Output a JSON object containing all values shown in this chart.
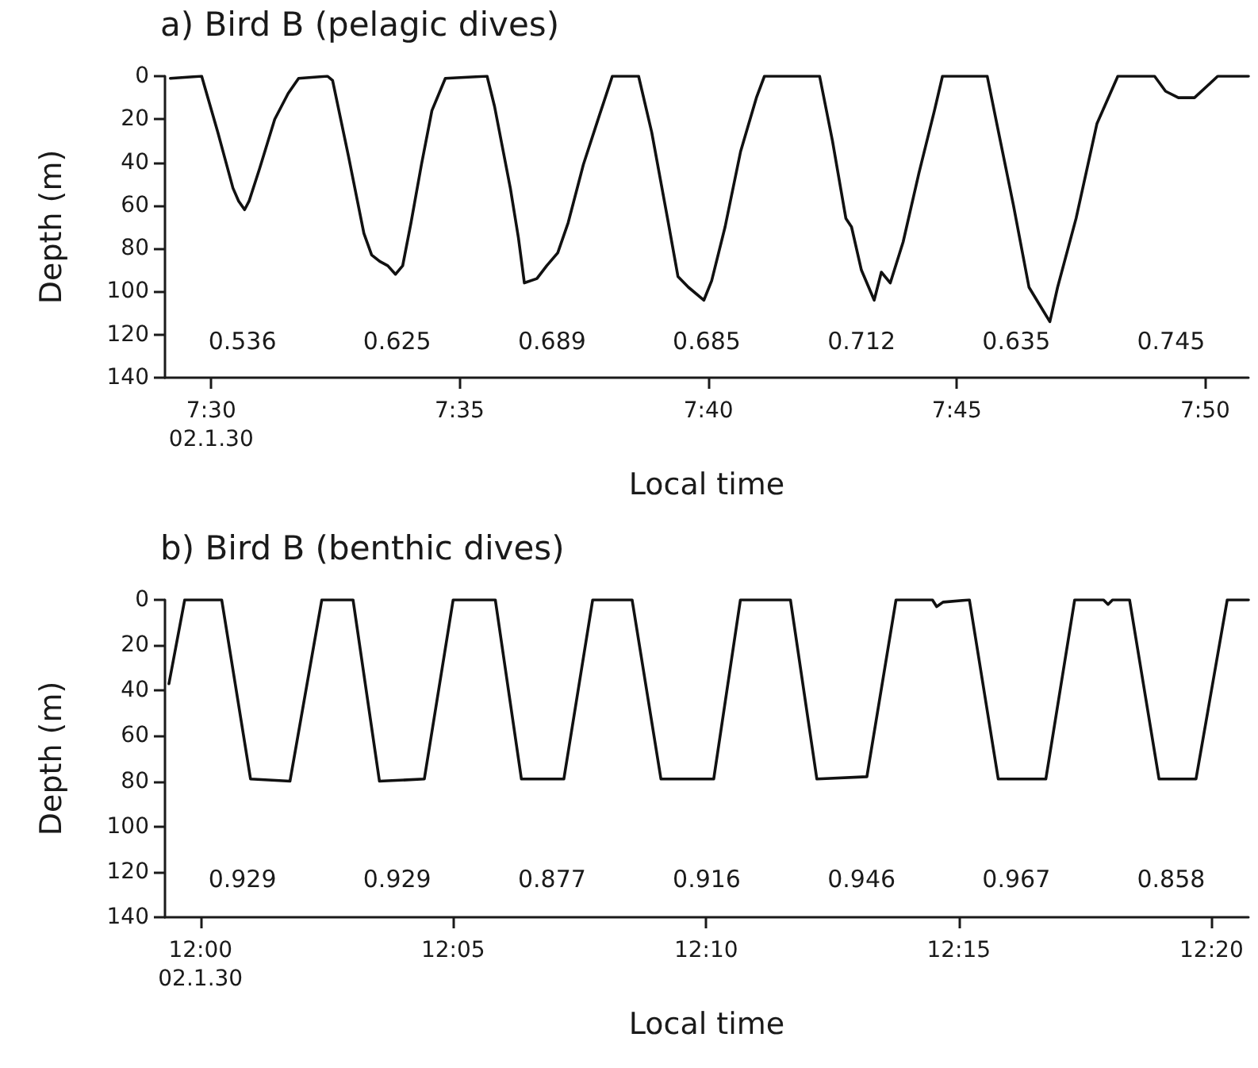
{
  "chart_data": [
    {
      "type": "line",
      "title": "a) Bird B (pelagic dives)",
      "xlabel": "Local time",
      "ylabel": "Depth (m)",
      "grid": false,
      "marker": "none",
      "line_style": "solid",
      "xlim": [
        7.4845,
        7.8478
      ],
      "ylim": [
        140,
        0
      ],
      "xticks": [
        {
          "value": 7.5,
          "label": "7:30\n02.1.30"
        },
        {
          "value": 7.5833,
          "label": "7:35"
        },
        {
          "value": 7.6667,
          "label": "7:40"
        },
        {
          "value": 7.75,
          "label": "7:45"
        },
        {
          "value": 7.8333,
          "label": "7:50"
        }
      ],
      "yticks": [
        0,
        20,
        40,
        60,
        80,
        100,
        120,
        140
      ],
      "x": [
        7.4863,
        7.4968,
        7.5022,
        7.5073,
        7.5092,
        7.5112,
        7.5127,
        7.5162,
        7.5213,
        7.5258,
        7.5293,
        7.539,
        7.5407,
        7.546,
        7.5512,
        7.5538,
        7.5565,
        7.5592,
        7.5618,
        7.5642,
        7.567,
        7.5705,
        7.574,
        7.5785,
        7.5925,
        7.595,
        7.6003,
        7.603,
        7.605,
        7.6092,
        7.6125,
        7.6162,
        7.6197,
        7.6248,
        7.6302,
        7.6345,
        7.6433,
        7.6477,
        7.653,
        7.6565,
        7.66,
        7.6652,
        7.6678,
        7.6723,
        7.6775,
        7.6828,
        7.6855,
        7.704,
        7.7083,
        7.7128,
        7.7147,
        7.718,
        7.7223,
        7.7247,
        7.7277,
        7.732,
        7.7373,
        7.7425,
        7.7452,
        7.7602,
        7.7637,
        7.769,
        7.7742,
        7.7777,
        7.7812,
        7.7838,
        7.79,
        7.797,
        7.804,
        7.8163,
        7.82,
        7.8243,
        7.8297,
        7.8375,
        7.8478
      ],
      "series": [
        {
          "color": "#111111",
          "values": [
            1,
            0,
            26,
            52,
            58,
            62,
            58,
            43,
            20,
            8,
            1,
            0,
            2,
            37,
            73,
            83,
            86,
            88,
            92,
            88,
            68,
            41,
            16,
            1,
            0,
            14,
            52,
            75,
            96,
            94,
            88,
            82,
            68,
            41,
            18,
            0,
            0,
            26,
            66,
            93,
            98,
            104,
            95,
            70,
            35,
            10,
            0,
            0,
            30,
            66,
            70,
            90,
            104,
            91,
            96,
            77,
            45,
            16,
            0,
            0,
            24,
            60,
            98,
            106,
            114,
            98,
            66,
            22,
            0,
            0,
            7,
            10,
            10,
            0,
            0
          ]
        }
      ],
      "annotations": [
        "0.536",
        "0.625",
        "0.689",
        "0.685",
        "0.712",
        "0.635",
        "0.745"
      ]
    },
    {
      "type": "line",
      "title": "b) Bird B (benthic dives)",
      "xlabel": "Local time",
      "ylabel": "Depth (m)",
      "grid": false,
      "marker": "none",
      "line_style": "solid",
      "xlim": [
        11.9883,
        12.3455
      ],
      "ylim": [
        140,
        0
      ],
      "xticks": [
        {
          "value": 12,
          "label": "12:00\n02.1.30"
        },
        {
          "value": 12.0833,
          "label": "12:05"
        },
        {
          "value": 12.1667,
          "label": "12:10"
        },
        {
          "value": 12.25,
          "label": "12:15"
        },
        {
          "value": 12.3333,
          "label": "12:20"
        }
      ],
      "yticks": [
        0,
        20,
        40,
        60,
        80,
        100,
        120,
        140
      ],
      "x": [
        11.9896,
        11.9948,
        12.007,
        12.0165,
        12.0295,
        12.04,
        12.0503,
        12.059,
        12.0738,
        12.0833,
        12.0972,
        12.1058,
        12.1198,
        12.1293,
        12.1423,
        12.1518,
        12.1692,
        12.178,
        12.1945,
        12.2032,
        12.2197,
        12.2293,
        12.2413,
        12.2427,
        12.2448,
        12.2535,
        12.263,
        12.2787,
        12.2882,
        12.2977,
        12.2992,
        12.3007,
        12.3063,
        12.316,
        12.3282,
        12.3385,
        12.3455
      ],
      "series": [
        {
          "color": "#111111",
          "values": [
            37,
            0,
            0,
            79,
            80,
            0,
            0,
            80,
            79,
            0,
            0,
            79,
            79,
            0,
            0,
            79,
            79,
            0,
            0,
            79,
            78,
            0,
            0,
            3,
            1,
            0,
            79,
            79,
            0,
            0,
            2,
            0,
            0,
            79,
            79,
            0,
            0
          ]
        }
      ],
      "annotations": [
        "0.929",
        "0.929",
        "0.877",
        "0.916",
        "0.946",
        "0.967",
        "0.858"
      ]
    }
  ]
}
